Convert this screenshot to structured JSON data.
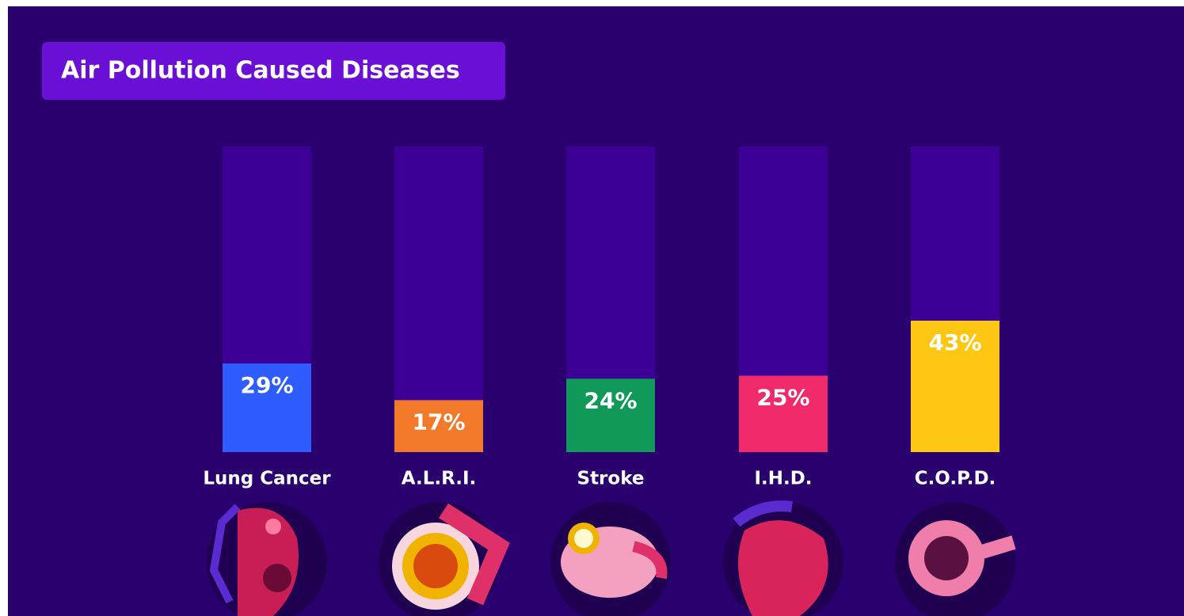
{
  "chart_data": {
    "type": "bar",
    "title": "Air Pollution Caused Diseases",
    "categories": [
      "Lung Cancer",
      "A.L.R.I.",
      "Stroke",
      "I.H.D.",
      "C.O.P.D."
    ],
    "values": [
      29,
      17,
      24,
      25,
      43
    ],
    "value_labels": [
      "29%",
      "17%",
      "24%",
      "25%",
      "43%"
    ],
    "colors": [
      "#2f5cff",
      "#f47a2b",
      "#11995a",
      "#f02a6b",
      "#fdc713"
    ],
    "track_color": "#3d0096",
    "ylim": [
      0,
      100
    ]
  }
}
